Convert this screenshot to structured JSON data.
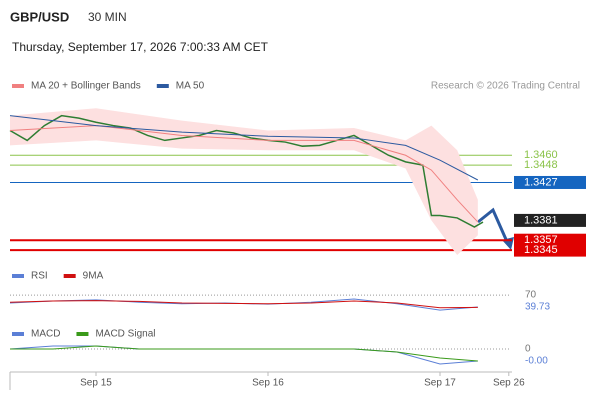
{
  "header": {
    "symbol": "GBP/USD",
    "timeframe": "30 MIN",
    "datetime": "Thursday, September 17, 2026 7:00:33 AM CET",
    "credit": "Research © 2026 Trading Central"
  },
  "chart_data": [
    {
      "type": "line",
      "xlim": [
        -0.5,
        2.407
      ],
      "ylim": [
        1.3333,
        1.3527
      ],
      "x": [
        -0.5,
        -0.4,
        -0.3,
        -0.2,
        -0.1,
        0,
        0.1,
        0.2,
        0.3,
        0.4,
        0.5,
        0.6,
        0.7,
        0.8,
        0.9,
        1,
        1.1,
        1.2,
        1.3,
        1.4,
        1.5,
        1.6,
        1.7,
        1.8,
        1.9,
        1.95,
        2,
        2.1,
        2.2,
        2.25
      ],
      "series": [
        {
          "color": "#2e7d32",
          "values": [
            1.349,
            1.3478,
            1.3496,
            1.3508,
            1.3505,
            1.35,
            1.3496,
            1.3493,
            1.3484,
            1.3478,
            1.3481,
            1.3484,
            1.349,
            1.3487,
            1.3481,
            1.3478,
            1.3476,
            1.3471,
            1.3472,
            1.3478,
            1.3484,
            1.3472,
            1.346,
            1.3452,
            1.3448,
            1.3387,
            1.3387,
            1.3384,
            1.3373,
            1.3379
          ]
        },
        {
          "name": "MA 20 + Bollinger Bands",
          "color": "#f08080",
          "band_color": "#fde0e0",
          "x": [
            -0.5,
            0,
            0.5,
            1,
            1.5,
            1.8,
            1.95,
            2.1,
            2.22
          ],
          "values": [
            1.349,
            1.3496,
            1.3484,
            1.3478,
            1.3478,
            1.346,
            1.3442,
            1.3406,
            1.3379
          ],
          "upper": [
            1.3508,
            1.3517,
            1.3502,
            1.349,
            1.3493,
            1.3478,
            1.3496,
            1.3466,
            1.3406
          ],
          "lower": [
            1.3472,
            1.3478,
            1.3468,
            1.3466,
            1.3466,
            1.3444,
            1.3381,
            1.3339,
            1.3363
          ]
        },
        {
          "name": "MA 50",
          "color": "#2c5aa0",
          "x": [
            -0.5,
            0,
            0.5,
            1,
            1.5,
            1.8,
            2,
            2.22
          ],
          "values": [
            1.3508,
            1.3496,
            1.3488,
            1.3483,
            1.3481,
            1.3472,
            1.3454,
            1.343
          ]
        }
      ],
      "levels": [
        {
          "value": 1.346,
          "label": "1.3460",
          "color": "#8bc34a",
          "line": true,
          "box": false
        },
        {
          "value": 1.3448,
          "label": "1.3448",
          "color": "#8bc34a",
          "line": true,
          "box": false
        },
        {
          "value": 1.3427,
          "label": "1.3427",
          "color": "#1565c0",
          "line": true,
          "box": true
        },
        {
          "value": 1.3381,
          "label": "1.3381",
          "color": "#222222",
          "line": false,
          "box": true
        },
        {
          "value": 1.3357,
          "label": "1.3357",
          "color": "#e00000",
          "line": true,
          "box": true
        },
        {
          "value": 1.3345,
          "label": "1.3345",
          "color": "#e00000",
          "line": true,
          "box": true
        }
      ]
    },
    {
      "type": "line",
      "xlim": [
        -0.5,
        2.407
      ],
      "ylim": [
        12,
        88
      ],
      "yticks": [
        70
      ],
      "x": [
        -0.5,
        -0.25,
        0,
        0.25,
        0.5,
        0.75,
        1,
        1.25,
        1.5,
        1.75,
        2,
        2.22
      ],
      "series": [
        {
          "name": "RSI",
          "color": "#5b7fd6",
          "values": [
            50,
            55,
            58,
            52,
            48,
            50,
            47,
            52,
            60,
            48,
            32,
            39.73
          ]
        },
        {
          "name": "9MA",
          "color": "#d01010",
          "values": [
            52,
            55,
            56,
            54,
            50,
            49,
            48,
            50,
            55,
            50,
            38,
            39
          ]
        }
      ],
      "current": 39.73
    },
    {
      "type": "line",
      "xlim": [
        -0.5,
        2.407
      ],
      "ylim": [
        -0.0007,
        0.0003
      ],
      "yticks": [
        0
      ],
      "x": [
        -0.5,
        -0.25,
        0,
        0.25,
        0.5,
        0.75,
        1,
        1.25,
        1.5,
        1.75,
        2,
        2.22
      ],
      "series": [
        {
          "name": "MACD",
          "color": "#5b7fd6",
          "values": [
            0,
            0.0001,
            0.0001,
            0,
            0,
            0,
            0,
            0,
            0,
            -0.0001,
            -0.0005,
            -0.0004
          ]
        },
        {
          "name": "MACD Signal",
          "color": "#3a9a1a",
          "values": [
            0,
            0,
            0.0001,
            0,
            0,
            0,
            0,
            0,
            0,
            -0.0001,
            -0.0003,
            -0.0004
          ]
        }
      ],
      "current": {
        "value": -0.0004,
        "label": "-0.00"
      },
      "xticks": [
        {
          "value": 0,
          "label": "Sep 15"
        },
        {
          "value": 1,
          "label": "Sep 16"
        },
        {
          "value": 2,
          "label": "Sep 17"
        },
        {
          "value": 2.4,
          "label": "Sep 26"
        }
      ]
    }
  ]
}
